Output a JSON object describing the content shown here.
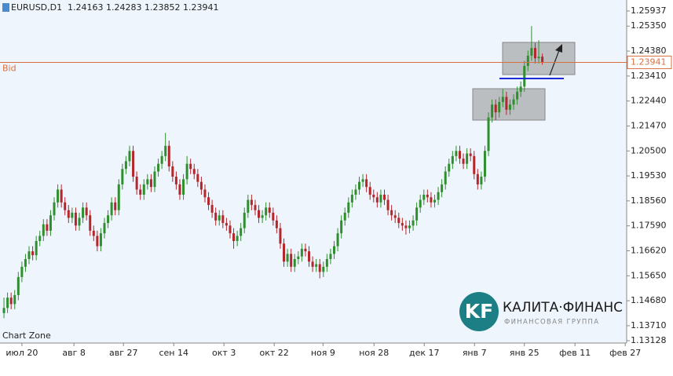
{
  "chart_data": {
    "type": "candlestick",
    "symbol": "EURUSD,D1",
    "bid_label": "Bid",
    "watermark": "Chart Zone",
    "logo": {
      "mark": "KF",
      "name": "КАЛИТА·ФИНАНС",
      "tagline": "ФИНАНСОВАЯ ГРУППА"
    },
    "up_color": "#2f8f2f",
    "down_color": "#b3262b",
    "bid_color": "#d9703f",
    "xlim": [
      -1.1,
      173.5
    ],
    "xticks": [
      {
        "value": 5,
        "label": "июл 20"
      },
      {
        "value": 19.5,
        "label": "авг 8"
      },
      {
        "value": 33.3,
        "label": "авг 27"
      },
      {
        "value": 47.3,
        "label": "сен 14"
      },
      {
        "value": 61.3,
        "label": "окт 3"
      },
      {
        "value": 75.3,
        "label": "окт 22"
      },
      {
        "value": 88.9,
        "label": "ноя 9"
      },
      {
        "value": 103.1,
        "label": "ноя 28"
      },
      {
        "value": 117.1,
        "label": "дек 17"
      },
      {
        "value": 131.1,
        "label": "янв 7"
      },
      {
        "value": 145,
        "label": "янв 25"
      },
      {
        "value": 159.1,
        "label": "фев 11"
      },
      {
        "value": 173.1,
        "label": "фев 27"
      }
    ],
    "ylim": [
      1.13037,
      1.26364
    ],
    "yticks": [
      1.25937,
      {
        "value": 1.2535,
        "label": "1.25350"
      },
      {
        "value": 1.2438,
        "label": "1.24380"
      },
      {
        "value": 1.2341,
        "label": "1.23410"
      },
      {
        "value": 1.2244,
        "label": "1.22440"
      },
      {
        "value": 1.2147,
        "label": "1.21470"
      },
      {
        "value": 1.205,
        "label": "1.20500"
      },
      {
        "value": 1.1953,
        "label": "1.19530"
      },
      {
        "value": 1.1856,
        "label": "1.18560"
      },
      {
        "value": 1.1759,
        "label": "1.17590"
      },
      {
        "value": 1.1662,
        "label": "1.16620"
      },
      {
        "value": 1.1565,
        "label": "1.15650"
      },
      {
        "value": 1.1468,
        "label": "1.14680"
      },
      {
        "value": 1.1371,
        "label": "1.13710"
      },
      1.13128
    ],
    "ohlc": [
      [
        1.142,
        1.148,
        1.14,
        1.144
      ],
      [
        1.144,
        1.15,
        1.142,
        1.148
      ],
      [
        1.148,
        1.15,
        1.1435,
        1.1455
      ],
      [
        1.1455,
        1.151,
        1.1435,
        1.149
      ],
      [
        1.149,
        1.158,
        1.147,
        1.156
      ],
      [
        1.156,
        1.162,
        1.154,
        1.16
      ],
      [
        1.16,
        1.165,
        1.158,
        1.163
      ],
      [
        1.163,
        1.168,
        1.161,
        1.166
      ],
      [
        1.166,
        1.168,
        1.1625,
        1.1645
      ],
      [
        1.1645,
        1.172,
        1.1625,
        1.17
      ],
      [
        1.17,
        1.174,
        1.168,
        1.172
      ],
      [
        1.172,
        1.1785,
        1.17,
        1.1765
      ],
      [
        1.1765,
        1.1785,
        1.172,
        1.174
      ],
      [
        1.174,
        1.182,
        1.172,
        1.18
      ],
      [
        1.18,
        1.187,
        1.178,
        1.185
      ],
      [
        1.185,
        1.192,
        1.183,
        1.19
      ],
      [
        1.19,
        1.192,
        1.183,
        1.185
      ],
      [
        1.185,
        1.187,
        1.18,
        1.182
      ],
      [
        1.182,
        1.184,
        1.177,
        1.179
      ],
      [
        1.179,
        1.183,
        1.177,
        1.181
      ],
      [
        1.181,
        1.183,
        1.174,
        1.176
      ],
      [
        1.176,
        1.181,
        1.174,
        1.179
      ],
      [
        1.179,
        1.185,
        1.177,
        1.183
      ],
      [
        1.183,
        1.185,
        1.178,
        1.18
      ],
      [
        1.18,
        1.182,
        1.172,
        1.174
      ],
      [
        1.174,
        1.176,
        1.17,
        1.172
      ],
      [
        1.172,
        1.174,
        1.166,
        1.168
      ],
      [
        1.168,
        1.175,
        1.166,
        1.173
      ],
      [
        1.173,
        1.179,
        1.171,
        1.177
      ],
      [
        1.177,
        1.182,
        1.175,
        1.18
      ],
      [
        1.18,
        1.187,
        1.178,
        1.185
      ],
      [
        1.185,
        1.187,
        1.18,
        1.182
      ],
      [
        1.182,
        1.194,
        1.18,
        1.192
      ],
      [
        1.192,
        1.2,
        1.19,
        1.198
      ],
      [
        1.198,
        1.203,
        1.196,
        1.201
      ],
      [
        1.201,
        1.207,
        1.199,
        1.205
      ],
      [
        1.205,
        1.207,
        1.193,
        1.195
      ],
      [
        1.195,
        1.197,
        1.188,
        1.19
      ],
      [
        1.19,
        1.192,
        1.186,
        1.188
      ],
      [
        1.188,
        1.194,
        1.186,
        1.192
      ],
      [
        1.192,
        1.196,
        1.19,
        1.194
      ],
      [
        1.194,
        1.196,
        1.189,
        1.191
      ],
      [
        1.191,
        1.199,
        1.189,
        1.197
      ],
      [
        1.197,
        1.202,
        1.195,
        1.2
      ],
      [
        1.2,
        1.205,
        1.198,
        1.203
      ],
      [
        1.203,
        1.212,
        1.201,
        1.207
      ],
      [
        1.207,
        1.209,
        1.197,
        1.199
      ],
      [
        1.199,
        1.201,
        1.193,
        1.195
      ],
      [
        1.195,
        1.197,
        1.19,
        1.192
      ],
      [
        1.192,
        1.194,
        1.186,
        1.188
      ],
      [
        1.188,
        1.196,
        1.186,
        1.194
      ],
      [
        1.194,
        1.203,
        1.192,
        1.2
      ],
      [
        1.2,
        1.202,
        1.196,
        1.198
      ],
      [
        1.198,
        1.2,
        1.194,
        1.196
      ],
      [
        1.196,
        1.198,
        1.191,
        1.193
      ],
      [
        1.193,
        1.195,
        1.188,
        1.19
      ],
      [
        1.19,
        1.192,
        1.185,
        1.187
      ],
      [
        1.187,
        1.189,
        1.182,
        1.184
      ],
      [
        1.184,
        1.186,
        1.179,
        1.181
      ],
      [
        1.181,
        1.183,
        1.176,
        1.178
      ],
      [
        1.178,
        1.182,
        1.176,
        1.18
      ],
      [
        1.18,
        1.182,
        1.175,
        1.177
      ],
      [
        1.177,
        1.179,
        1.174,
        1.176
      ],
      [
        1.176,
        1.178,
        1.171,
        1.173
      ],
      [
        1.173,
        1.175,
        1.167,
        1.17
      ],
      [
        1.17,
        1.174,
        1.168,
        1.172
      ],
      [
        1.172,
        1.177,
        1.17,
        1.175
      ],
      [
        1.175,
        1.183,
        1.173,
        1.181
      ],
      [
        1.181,
        1.188,
        1.179,
        1.186
      ],
      [
        1.186,
        1.188,
        1.182,
        1.184
      ],
      [
        1.184,
        1.186,
        1.18,
        1.182
      ],
      [
        1.182,
        1.184,
        1.177,
        1.179
      ],
      [
        1.179,
        1.182,
        1.177,
        1.18
      ],
      [
        1.18,
        1.185,
        1.178,
        1.183
      ],
      [
        1.183,
        1.185,
        1.179,
        1.181
      ],
      [
        1.181,
        1.183,
        1.176,
        1.178
      ],
      [
        1.178,
        1.18,
        1.173,
        1.175
      ],
      [
        1.175,
        1.177,
        1.167,
        1.169
      ],
      [
        1.169,
        1.171,
        1.16,
        1.162
      ],
      [
        1.162,
        1.167,
        1.16,
        1.165
      ],
      [
        1.165,
        1.167,
        1.158,
        1.16
      ],
      [
        1.16,
        1.165,
        1.158,
        1.163
      ],
      [
        1.163,
        1.166,
        1.161,
        1.164
      ],
      [
        1.164,
        1.169,
        1.162,
        1.167
      ],
      [
        1.167,
        1.169,
        1.164,
        1.166
      ],
      [
        1.166,
        1.168,
        1.16,
        1.162
      ],
      [
        1.162,
        1.164,
        1.158,
        1.16
      ],
      [
        1.16,
        1.163,
        1.158,
        1.161
      ],
      [
        1.161,
        1.163,
        1.1555,
        1.158
      ],
      [
        1.158,
        1.162,
        1.156,
        1.16
      ],
      [
        1.16,
        1.165,
        1.158,
        1.163
      ],
      [
        1.163,
        1.167,
        1.161,
        1.165
      ],
      [
        1.165,
        1.17,
        1.163,
        1.168
      ],
      [
        1.168,
        1.175,
        1.166,
        1.173
      ],
      [
        1.173,
        1.18,
        1.171,
        1.178
      ],
      [
        1.178,
        1.183,
        1.176,
        1.181
      ],
      [
        1.181,
        1.187,
        1.179,
        1.185
      ],
      [
        1.185,
        1.19,
        1.183,
        1.188
      ],
      [
        1.188,
        1.192,
        1.186,
        1.19
      ],
      [
        1.19,
        1.195,
        1.188,
        1.193
      ],
      [
        1.193,
        1.196,
        1.191,
        1.194
      ],
      [
        1.194,
        1.196,
        1.189,
        1.191
      ],
      [
        1.191,
        1.193,
        1.186,
        1.188
      ],
      [
        1.188,
        1.19,
        1.185,
        1.187
      ],
      [
        1.187,
        1.189,
        1.183,
        1.185
      ],
      [
        1.185,
        1.19,
        1.183,
        1.188
      ],
      [
        1.188,
        1.19,
        1.184,
        1.186
      ],
      [
        1.186,
        1.188,
        1.18,
        1.182
      ],
      [
        1.182,
        1.184,
        1.178,
        1.18
      ],
      [
        1.18,
        1.182,
        1.177,
        1.179
      ],
      [
        1.179,
        1.181,
        1.175,
        1.177
      ],
      [
        1.177,
        1.179,
        1.174,
        1.176
      ],
      [
        1.176,
        1.178,
        1.1725,
        1.175
      ],
      [
        1.175,
        1.178,
        1.173,
        1.176
      ],
      [
        1.176,
        1.18,
        1.174,
        1.178
      ],
      [
        1.178,
        1.185,
        1.176,
        1.183
      ],
      [
        1.183,
        1.188,
        1.181,
        1.186
      ],
      [
        1.186,
        1.19,
        1.184,
        1.188
      ],
      [
        1.188,
        1.19,
        1.185,
        1.187
      ],
      [
        1.187,
        1.189,
        1.183,
        1.185
      ],
      [
        1.185,
        1.188,
        1.183,
        1.186
      ],
      [
        1.186,
        1.191,
        1.184,
        1.189
      ],
      [
        1.189,
        1.194,
        1.187,
        1.192
      ],
      [
        1.192,
        1.199,
        1.19,
        1.197
      ],
      [
        1.197,
        1.202,
        1.195,
        1.2
      ],
      [
        1.2,
        1.205,
        1.198,
        1.203
      ],
      [
        1.203,
        1.207,
        1.201,
        1.205
      ],
      [
        1.205,
        1.207,
        1.2,
        1.202
      ],
      [
        1.202,
        1.204,
        1.198,
        1.2
      ],
      [
        1.2,
        1.206,
        1.198,
        1.204
      ],
      [
        1.204,
        1.206,
        1.201,
        1.203
      ],
      [
        1.203,
        1.205,
        1.194,
        1.196
      ],
      [
        1.196,
        1.198,
        1.19,
        1.192
      ],
      [
        1.192,
        1.197,
        1.19,
        1.195
      ],
      [
        1.195,
        1.207,
        1.193,
        1.205
      ],
      [
        1.205,
        1.22,
        1.203,
        1.218
      ],
      [
        1.218,
        1.225,
        1.216,
        1.223
      ],
      [
        1.223,
        1.225,
        1.217,
        1.22
      ],
      [
        1.22,
        1.226,
        1.218,
        1.224
      ],
      [
        1.224,
        1.229,
        1.222,
        1.226
      ],
      [
        1.226,
        1.228,
        1.219,
        1.221
      ],
      [
        1.221,
        1.225,
        1.219,
        1.223
      ],
      [
        1.223,
        1.227,
        1.221,
        1.225
      ],
      [
        1.225,
        1.23,
        1.223,
        1.228
      ],
      [
        1.228,
        1.232,
        1.226,
        1.23
      ],
      [
        1.23,
        1.24,
        1.228,
        1.238
      ],
      [
        1.238,
        1.244,
        1.236,
        1.242
      ],
      [
        1.242,
        1.2535,
        1.24,
        1.245
      ],
      [
        1.245,
        1.247,
        1.239,
        1.241
      ],
      [
        1.241,
        1.248,
        1.239,
        1.2416
      ],
      [
        1.24163,
        1.24283,
        1.23852,
        1.23941
      ]
    ]
  }
}
